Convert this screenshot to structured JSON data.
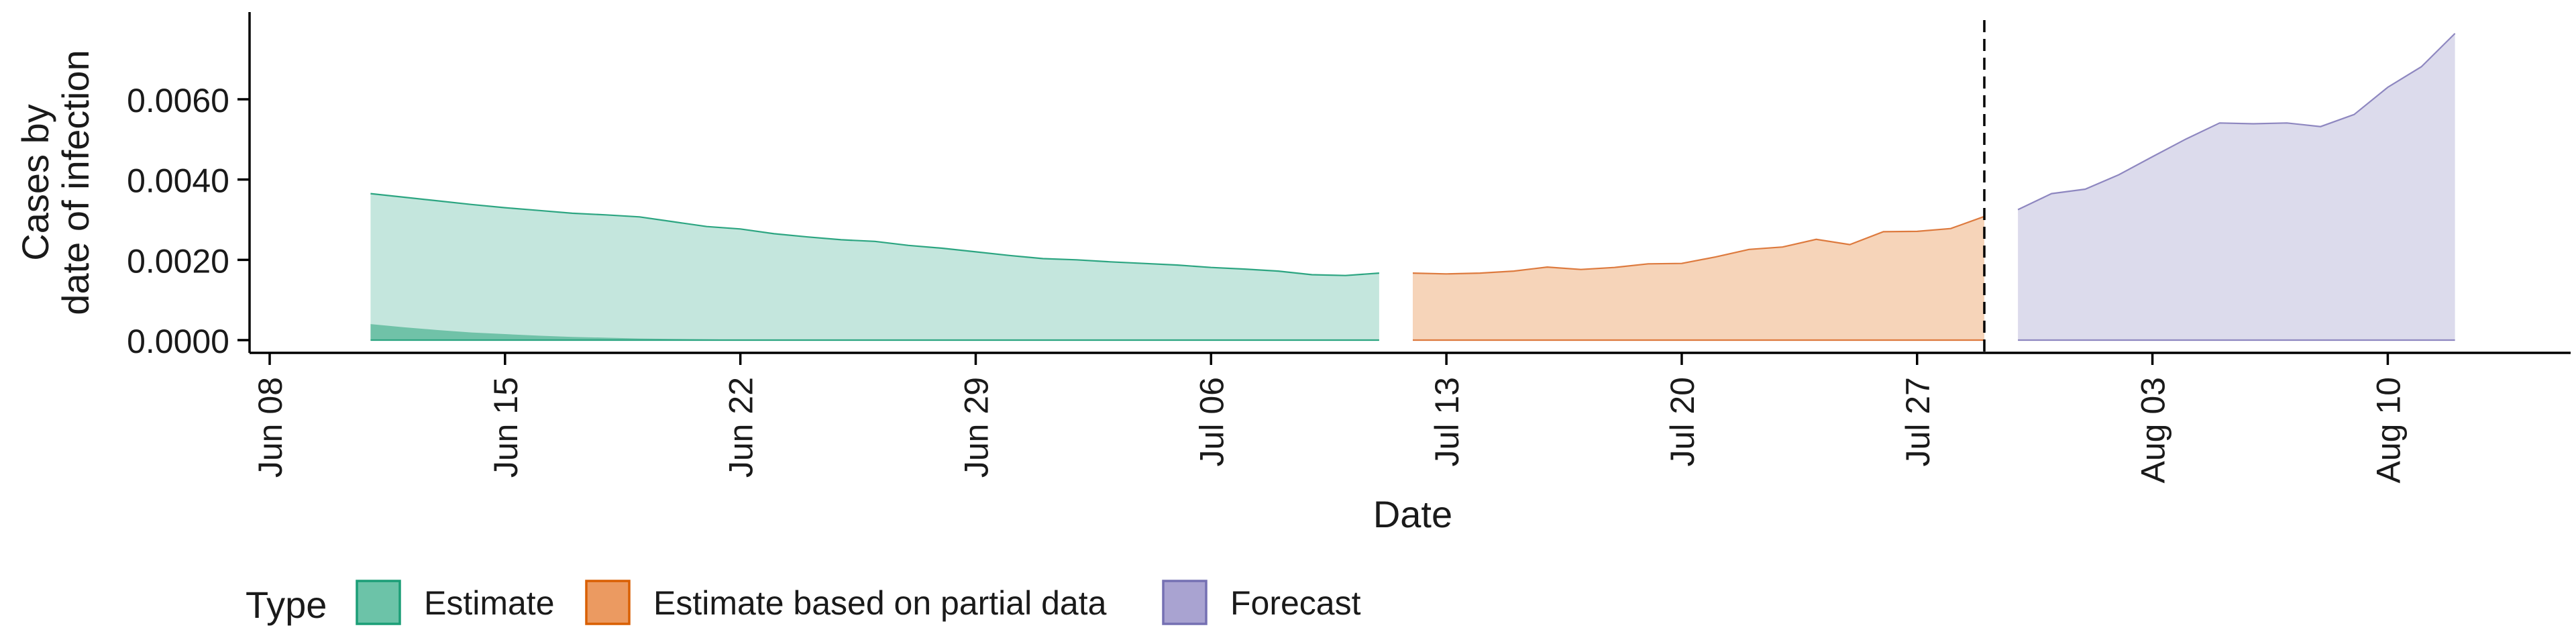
{
  "chart_data": {
    "type": "area",
    "xlabel": "Date",
    "ylabel_lines": [
      "Cases by",
      "date of infection"
    ],
    "x_ticks": [
      "Jun 08",
      "Jun 15",
      "Jun 22",
      "Jun 29",
      "Jul 06",
      "Jul 13",
      "Jul 20",
      "Jul 27",
      "Aug 03",
      "Aug 10"
    ],
    "x_tick_dates": [
      "2020-06-08",
      "2020-06-15",
      "2020-06-22",
      "2020-06-29",
      "2020-07-06",
      "2020-07-13",
      "2020-07-20",
      "2020-07-27",
      "2020-08-03",
      "2020-08-10"
    ],
    "xlim": [
      "2020-06-08",
      "2020-08-15"
    ],
    "y_ticks": [
      "0.0000",
      "0.0020",
      "0.0040",
      "0.0060"
    ],
    "y_tick_values": [
      0,
      0.002,
      0.004,
      0.006
    ],
    "ylim": [
      -0.0004,
      0.008
    ],
    "vline_date": "2020-07-29",
    "grid": false,
    "legend": {
      "title": "Type",
      "position": "bottom",
      "entries": [
        "Estimate",
        "Estimate based on partial data",
        "Forecast"
      ]
    },
    "colors": {
      "Estimate": {
        "fill": "#c4e6dd",
        "line": "#2ca581",
        "band": "#70c2a8",
        "key": "#6cc3a8",
        "key_border": "#1b9e77"
      },
      "Estimate based on partial data": {
        "fill": "#f6d4b9",
        "line": "#dd7a3e",
        "key": "#eb9a61",
        "key_border": "#d95f02"
      },
      "Forecast": {
        "fill": "#dcdbec",
        "line": "#8e87c0",
        "key": "#a9a3d1",
        "key_border": "#7570b3"
      }
    },
    "series": [
      {
        "name": "Estimate",
        "x": [
          "2020-06-11",
          "2020-06-12",
          "2020-06-13",
          "2020-06-14",
          "2020-06-15",
          "2020-06-16",
          "2020-06-17",
          "2020-06-18",
          "2020-06-19",
          "2020-06-20",
          "2020-06-21",
          "2020-06-22",
          "2020-06-23",
          "2020-06-24",
          "2020-06-25",
          "2020-06-26",
          "2020-06-27",
          "2020-06-28",
          "2020-06-29",
          "2020-06-30",
          "2020-07-01",
          "2020-07-02",
          "2020-07-03",
          "2020-07-04",
          "2020-07-05",
          "2020-07-06",
          "2020-07-07",
          "2020-07-08",
          "2020-07-09",
          "2020-07-10",
          "2020-07-11"
        ],
        "upper": [
          0.00365,
          0.00356,
          0.00347,
          0.00338,
          0.0033,
          0.00323,
          0.00316,
          0.00312,
          0.00307,
          0.00295,
          0.00283,
          0.00277,
          0.00265,
          0.00257,
          0.0025,
          0.00246,
          0.00236,
          0.00229,
          0.0022,
          0.00211,
          0.00203,
          0.002,
          0.00195,
          0.00191,
          0.00187,
          0.00181,
          0.00177,
          0.00172,
          0.00163,
          0.00161,
          0.00167
        ],
        "lower": [
          0,
          0,
          0,
          0,
          0,
          0,
          0,
          0,
          0,
          0,
          0,
          0,
          0,
          0,
          0,
          0,
          0,
          0,
          0,
          0,
          0,
          0,
          0,
          0,
          0,
          0,
          0,
          0,
          0,
          0,
          0
        ],
        "band_upper": [
          0.0004,
          0.00032,
          0.00025,
          0.00019,
          0.00015,
          0.00011,
          8e-05,
          6e-05,
          4e-05,
          3e-05,
          2e-05,
          1e-05,
          1e-05,
          0,
          0,
          0,
          0,
          0,
          0,
          0,
          0,
          0,
          0,
          0,
          0,
          0,
          0,
          0,
          0,
          0,
          0
        ]
      },
      {
        "name": "Estimate based on partial data",
        "x": [
          "2020-07-12",
          "2020-07-13",
          "2020-07-14",
          "2020-07-15",
          "2020-07-16",
          "2020-07-17",
          "2020-07-18",
          "2020-07-19",
          "2020-07-20",
          "2020-07-21",
          "2020-07-22",
          "2020-07-23",
          "2020-07-24",
          "2020-07-25",
          "2020-07-26",
          "2020-07-27",
          "2020-07-28",
          "2020-07-29"
        ],
        "upper": [
          0.00167,
          0.00165,
          0.00167,
          0.00172,
          0.00182,
          0.00176,
          0.00181,
          0.0019,
          0.00191,
          0.00207,
          0.00226,
          0.00232,
          0.00251,
          0.00238,
          0.0027,
          0.00271,
          0.00278,
          0.00308
        ],
        "lower": [
          0,
          0,
          0,
          0,
          0,
          0,
          0,
          0,
          0,
          0,
          0,
          0,
          0,
          0,
          0,
          0,
          0,
          0
        ]
      },
      {
        "name": "Forecast",
        "x": [
          "2020-07-30",
          "2020-07-31",
          "2020-08-01",
          "2020-08-02",
          "2020-08-03",
          "2020-08-04",
          "2020-08-05",
          "2020-08-06",
          "2020-08-07",
          "2020-08-08",
          "2020-08-09",
          "2020-08-10",
          "2020-08-11",
          "2020-08-12"
        ],
        "upper": [
          0.00325,
          0.00365,
          0.00376,
          0.00412,
          0.00457,
          0.00501,
          0.00541,
          0.00539,
          0.00541,
          0.00532,
          0.00562,
          0.0063,
          0.00681,
          0.00764
        ],
        "lower": [
          0,
          0,
          0,
          0,
          0,
          0,
          0,
          0,
          0,
          0,
          0,
          0,
          0,
          0
        ]
      }
    ]
  }
}
